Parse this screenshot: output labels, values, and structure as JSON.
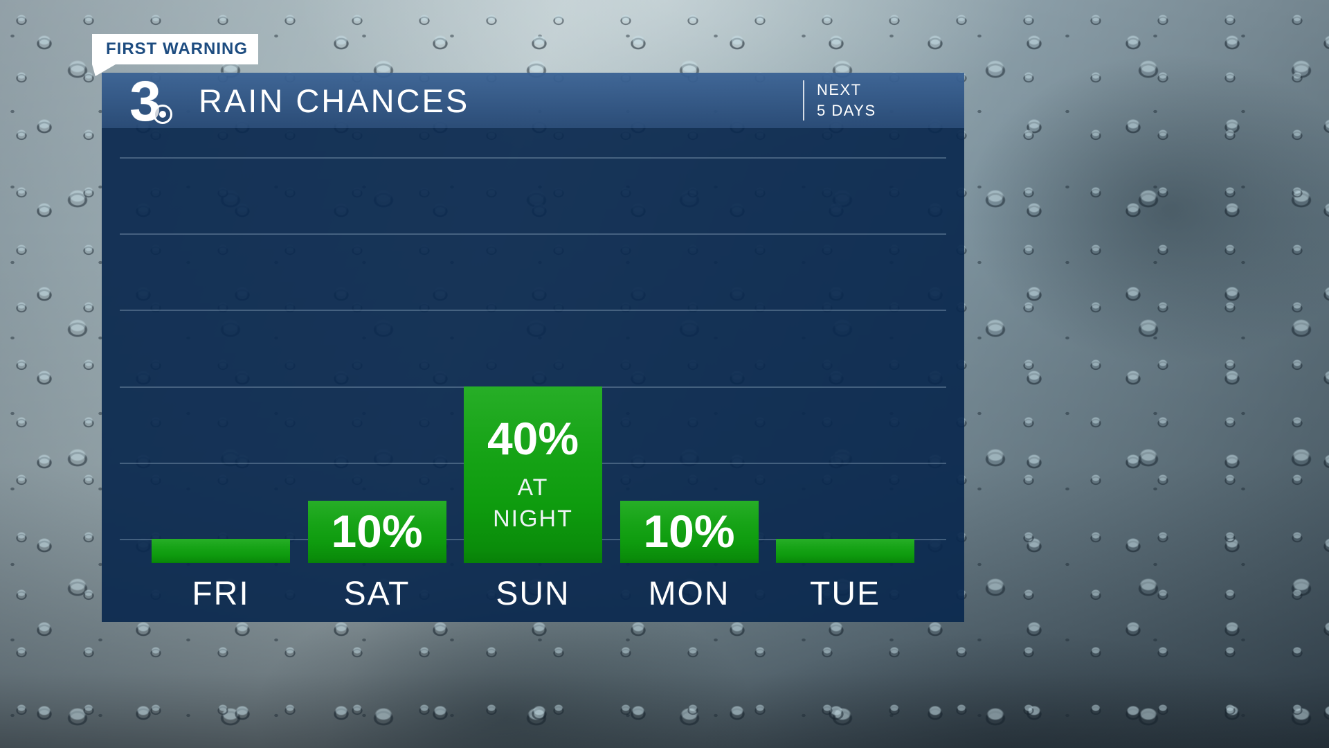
{
  "branding": {
    "tab_label": "FIRST WARNING",
    "station_number": "3",
    "tab_text_color": "#1d4c80",
    "header_blue": "#2c5381",
    "panel_navy": "#0e2c52",
    "bar_green": "#12a012",
    "text_white": "#ffffff"
  },
  "header": {
    "title": "RAIN CHANCES",
    "period_line1": "NEXT",
    "period_line2": "5 DAYS"
  },
  "chart_data": {
    "type": "bar",
    "title": "RAIN CHANCES",
    "subtitle": "NEXT 5 DAYS",
    "categories": [
      "FRI",
      "SAT",
      "SUN",
      "MON",
      "TUE"
    ],
    "values": [
      0,
      10,
      40,
      10,
      0
    ],
    "unit": "%",
    "y_axis_labeled": false,
    "gridline_count": 6,
    "grid": true,
    "legend_position": "none",
    "bar_color": "#12a012",
    "bars": [
      {
        "day": "FRI",
        "value": 0,
        "label": ""
      },
      {
        "day": "SAT",
        "value": 10,
        "label": "10%"
      },
      {
        "day": "SUN",
        "value": 40,
        "label": "40%",
        "note": "AT NIGHT"
      },
      {
        "day": "MON",
        "value": 10,
        "label": "10%"
      },
      {
        "day": "TUE",
        "value": 0,
        "label": ""
      }
    ]
  }
}
